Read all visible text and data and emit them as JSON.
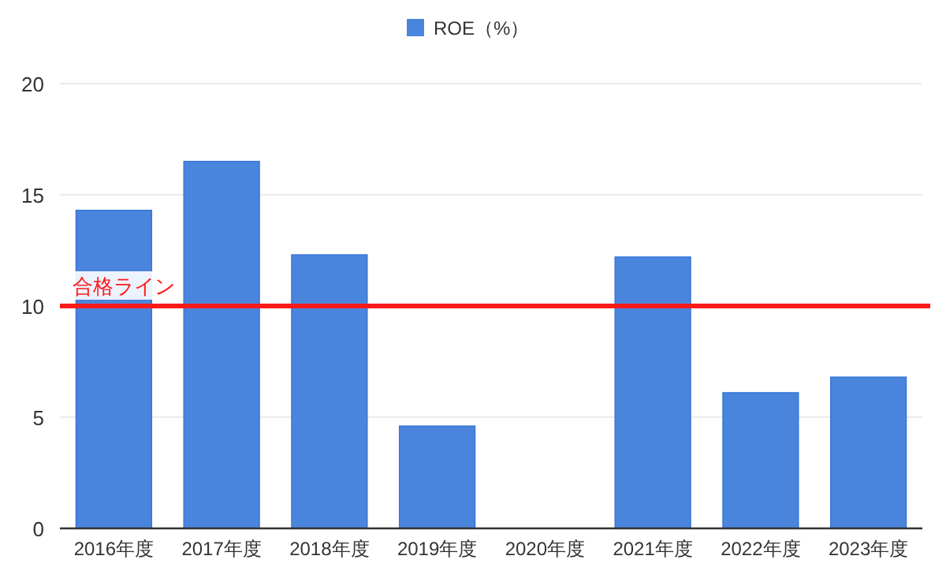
{
  "chart_data": {
    "type": "bar",
    "categories": [
      "2016年度",
      "2017年度",
      "2018年度",
      "2019年度",
      "2020年度",
      "2021年度",
      "2022年度",
      "2023年度"
    ],
    "series": [
      {
        "name": "ROE（%）",
        "color": "#4a85dd",
        "values": [
          14.3,
          16.5,
          12.3,
          4.6,
          null,
          12.2,
          6.1,
          6.8
        ]
      }
    ],
    "ylim": [
      0,
      20
    ],
    "yticks": [
      0,
      5,
      10,
      15,
      20
    ],
    "grid": "y",
    "legend": "top",
    "ref_lines": [
      {
        "axis": "y",
        "value": 10,
        "label": "合格ライン",
        "color": "#ff1a1a"
      }
    ]
  }
}
